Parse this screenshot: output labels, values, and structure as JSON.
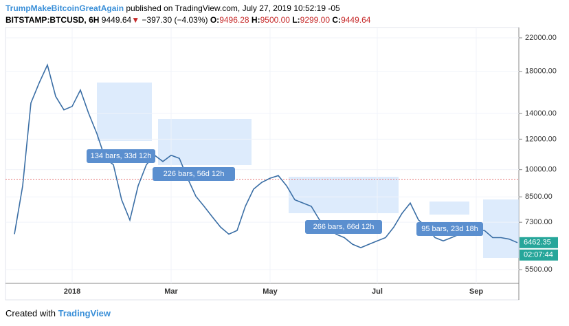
{
  "header": {
    "author": "TrumpMakeBitcoinGreatAgain",
    "published": "published on TradingView.com, July 27, 2019 10:52:19 -05",
    "symbol": "BITSTAMP:BTCUSD, 6H",
    "last": "9449.64",
    "arrow": "▼",
    "change": "−397.30 (−4.03%)",
    "o_label": "O:",
    "open": "9496.28",
    "h_label": "H:",
    "high": "9500.00",
    "l_label": "L:",
    "low": "9299.00",
    "c_label": "C:",
    "close": "9449.64"
  },
  "chart_data": {
    "type": "line",
    "log": true,
    "color": "#3a6ea5",
    "categories": [
      null,
      null,
      null,
      null,
      null,
      null,
      null,
      "2018",
      null,
      null,
      null,
      null,
      null,
      null,
      null,
      null,
      null,
      null,
      null,
      "Mar",
      null,
      null,
      null,
      null,
      null,
      null,
      null,
      null,
      null,
      null,
      null,
      "May",
      null,
      null,
      null,
      null,
      null,
      null,
      null,
      null,
      null,
      null,
      null,
      null,
      "Jul",
      null,
      null,
      null,
      null,
      null,
      null,
      null,
      null,
      null,
      null,
      null,
      "Sep",
      null,
      null,
      null,
      null,
      null
    ],
    "values": [
      6800,
      9080,
      14900,
      16800,
      18700,
      15500,
      14300,
      14600,
      16100,
      14000,
      12400,
      10700,
      10300,
      8350,
      7400,
      9080,
      10300,
      10900,
      10500,
      10900,
      10700,
      9500,
      8530,
      8030,
      7540,
      7090,
      6800,
      6950,
      8030,
      8900,
      9270,
      9500,
      9650,
      9080,
      8350,
      8190,
      8030,
      7400,
      7090,
      6800,
      6660,
      6400,
      6270,
      6400,
      6530,
      6660,
      7090,
      7700,
      8190,
      7400,
      7090,
      6660,
      6530,
      6660,
      6800,
      6800,
      6950,
      6950,
      6660,
      6660,
      6600,
      6462.35
    ],
    "ylim": [
      5066,
      23400
    ],
    "yticks": [
      {
        "value": 5500,
        "label": "5500.00"
      },
      {
        "value": 7300,
        "label": "7300.00"
      },
      {
        "value": 8500,
        "label": "8500.00"
      },
      {
        "value": 10000,
        "label": "10000.00"
      },
      {
        "value": 12000,
        "label": "12000.00"
      },
      {
        "value": 14000,
        "label": "14000.00"
      },
      {
        "value": 18000,
        "label": "18000.00"
      },
      {
        "value": 22000,
        "label": "22000.00"
      }
    ],
    "price_line": 9449.64,
    "last_price": {
      "value": 6462.35,
      "label": "6462.35"
    },
    "countdown": "02:07:44",
    "annotations": [
      "134 bars, 33d 12h",
      "226 bars, 56d 12h",
      "266 bars, 66d 12h",
      "95 bars, 23d 18h"
    ]
  },
  "footer": {
    "created": "Created with",
    "brand": "TradingView"
  }
}
